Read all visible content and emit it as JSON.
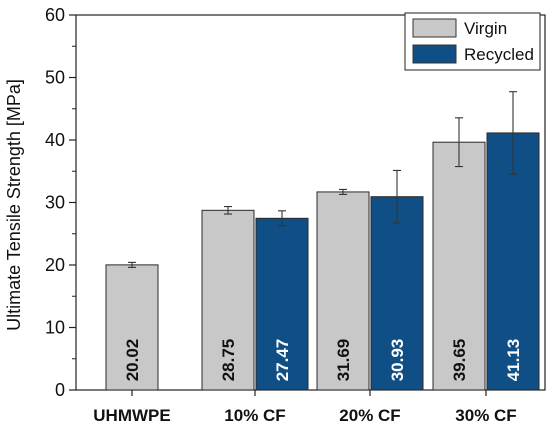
{
  "chart_data": {
    "type": "bar",
    "title": "",
    "xlabel": "",
    "ylabel": "Ultimate Tensile Strength [MPa]",
    "ylim": [
      0,
      60
    ],
    "yticks": [
      "0",
      "10",
      "20",
      "30",
      "40",
      "50",
      "60"
    ],
    "categories": [
      "UHMWPE",
      "10% CF",
      "20% CF",
      "30% CF"
    ],
    "series": [
      {
        "name": "Virgin",
        "color": "#c8c8c8",
        "label_color": "#111111",
        "values": [
          20.02,
          28.75,
          31.69,
          39.65
        ],
        "value_labels": [
          "20.02",
          "28.75",
          "31.69",
          "39.65"
        ],
        "errors": [
          0.4,
          0.6,
          0.4,
          3.9
        ]
      },
      {
        "name": "Recycled",
        "color": "#0f4f85",
        "label_color": "#ffffff",
        "values": [
          null,
          27.47,
          30.93,
          41.13
        ],
        "value_labels": [
          null,
          "27.47",
          "30.93",
          "41.13"
        ],
        "errors": [
          null,
          1.2,
          4.2,
          6.6
        ]
      }
    ],
    "legend": {
      "position": "top-right",
      "entries": [
        "Virgin",
        "Recycled"
      ]
    },
    "grid": false
  }
}
